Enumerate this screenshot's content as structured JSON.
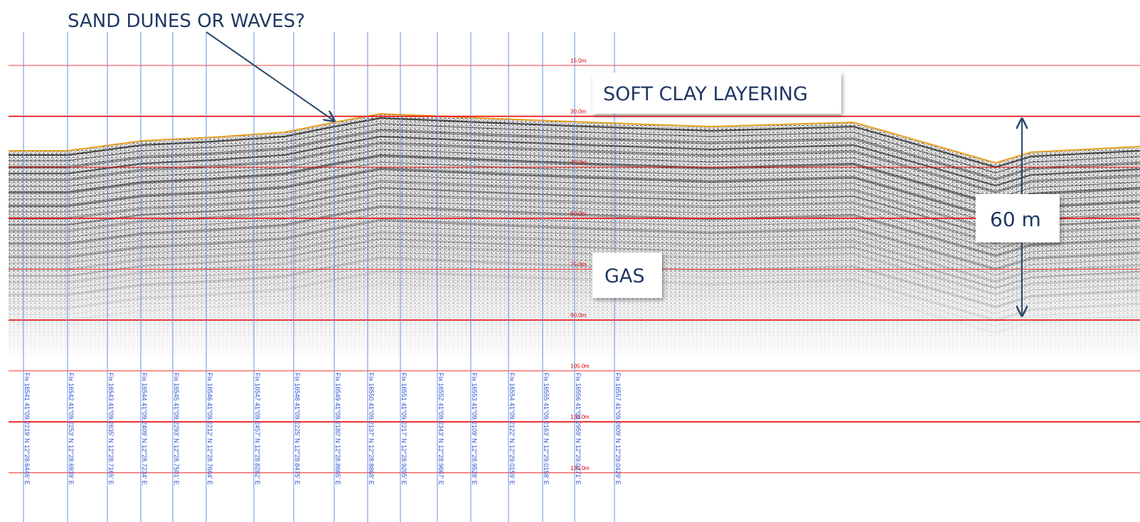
{
  "annotations": {
    "top": "SAND DUNES OR WAVES?",
    "layering": "SOFT CLAY LAYERING",
    "gas": "GAS",
    "thickness": "60 m"
  },
  "depth_labels": [
    "15.0m",
    "30.0m",
    "45.0m",
    "60.0m",
    "75.0m",
    "90.0m",
    "105.0m",
    "120.0m",
    "135.0m"
  ],
  "fix_labels": [
    "Fix 16541 41°09.2219' N 12°28.6446' E",
    "Fix 16542 41°09.2253' N 12°28.6939' E",
    "Fix 16543 41°09.2635' N 12°28.7165' E",
    "Fix 16544 41°09.2409' N 12°28.7234' E",
    "Fix 16545 41°09.2293' N 12°28.7501' E",
    "Fix 16546 41°09.2212' N 12°28.7664' E",
    "Fix 16547 41°09.2457' N 12°28.8282' E",
    "Fix 16548 41°09.2225' N 12°28.8475' E",
    "Fix 16549 41°09.2180' N 12°28.8665' E",
    "Fix 16550 41°09.2137' N 12°28.8868' E",
    "Fix 16551 41°09.2217' N 12°28.9205' E",
    "Fix 16552 41°09.2343' N 12°28.9667' E",
    "Fix 16553 41°09.2109' N 12°28.9528' E",
    "Fix 16554 41°09.2122' N 12°29.0159' E",
    "Fix 16555 41°09.2163' N 12°29.0158' E",
    "Fix 16556 41°09.2959' N 12°29.0271' E",
    "Fix 16557 41°09.2609' N 12°29.0429' E"
  ]
}
